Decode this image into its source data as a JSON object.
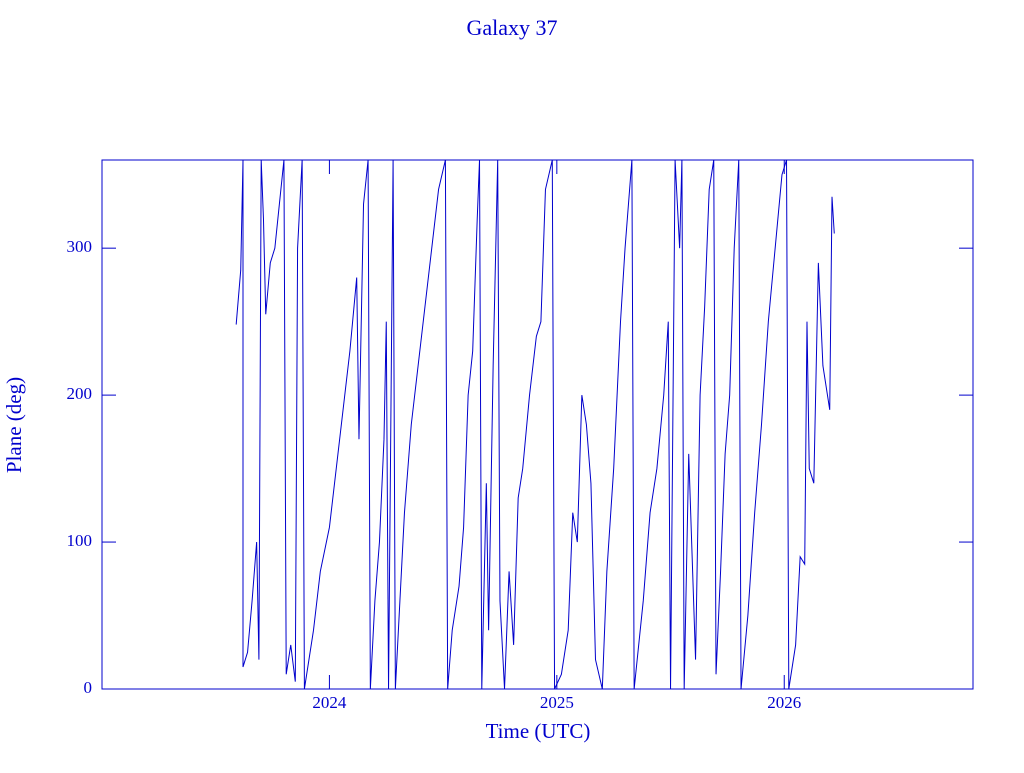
{
  "chart_data": {
    "type": "line",
    "title": "Galaxy 37",
    "xlabel": "Time (UTC)",
    "ylabel": "Plane (deg)",
    "color": "#0000cc",
    "xlim": [
      2023.0,
      2026.83
    ],
    "xticks": [
      2024,
      2025,
      2026
    ],
    "ylim": [
      0,
      360
    ],
    "yticks": [
      0,
      100,
      200,
      300
    ],
    "x": [
      2023.59,
      2023.61,
      2023.62,
      2023.62,
      2023.64,
      2023.66,
      2023.68,
      2023.69,
      2023.7,
      2023.71,
      2023.72,
      2023.74,
      2023.76,
      2023.78,
      2023.8,
      2023.81,
      2023.83,
      2023.85,
      2023.86,
      2023.88,
      2023.89,
      2023.93,
      2023.96,
      2024.0,
      2024.03,
      2024.06,
      2024.09,
      2024.12,
      2024.13,
      2024.15,
      2024.17,
      2024.18,
      2024.2,
      2024.22,
      2024.24,
      2024.25,
      2024.26,
      2024.28,
      2024.29,
      2024.31,
      2024.33,
      2024.36,
      2024.39,
      2024.42,
      2024.45,
      2024.48,
      2024.51,
      2024.52,
      2024.54,
      2024.57,
      2024.59,
      2024.61,
      2024.63,
      2024.65,
      2024.66,
      2024.67,
      2024.69,
      2024.7,
      2024.72,
      2024.74,
      2024.75,
      2024.77,
      2024.79,
      2024.81,
      2024.83,
      2024.85,
      2024.88,
      2024.91,
      2024.93,
      2024.95,
      2024.98,
      2024.99,
      2025.02,
      2025.05,
      2025.07,
      2025.09,
      2025.11,
      2025.13,
      2025.15,
      2025.17,
      2025.2,
      2025.22,
      2025.25,
      2025.28,
      2025.3,
      2025.33,
      2025.34,
      2025.38,
      2025.41,
      2025.44,
      2025.47,
      2025.49,
      2025.5,
      2025.52,
      2025.54,
      2025.55,
      2025.56,
      2025.58,
      2025.61,
      2025.63,
      2025.65,
      2025.67,
      2025.69,
      2025.7,
      2025.72,
      2025.74,
      2025.76,
      2025.78,
      2025.8,
      2025.81,
      2025.84,
      2025.87,
      2025.9,
      2025.93,
      2025.96,
      2025.99,
      2026.01,
      2026.02,
      2026.05,
      2026.07,
      2026.09,
      2026.1,
      2026.11,
      2026.13,
      2026.15,
      2026.17,
      2026.2,
      2026.21,
      2026.22
    ],
    "values": [
      248,
      285,
      360,
      15,
      25,
      60,
      100,
      20,
      360,
      320,
      255,
      290,
      300,
      330,
      360,
      10,
      30,
      5,
      300,
      360,
      0,
      40,
      80,
      110,
      150,
      190,
      230,
      280,
      170,
      330,
      360,
      0,
      60,
      100,
      170,
      250,
      0,
      360,
      0,
      60,
      120,
      180,
      220,
      260,
      300,
      340,
      360,
      0,
      40,
      70,
      110,
      200,
      230,
      320,
      360,
      0,
      140,
      40,
      220,
      360,
      60,
      0,
      80,
      30,
      130,
      150,
      200,
      240,
      250,
      340,
      360,
      0,
      10,
      40,
      120,
      100,
      200,
      180,
      140,
      20,
      0,
      80,
      150,
      250,
      300,
      360,
      0,
      60,
      120,
      150,
      200,
      250,
      0,
      360,
      300,
      360,
      0,
      160,
      20,
      200,
      260,
      340,
      360,
      10,
      80,
      160,
      200,
      300,
      360,
      0,
      50,
      120,
      180,
      250,
      300,
      350,
      360,
      0,
      30,
      90,
      85,
      250,
      150,
      140,
      290,
      220,
      190,
      335,
      310
    ]
  }
}
